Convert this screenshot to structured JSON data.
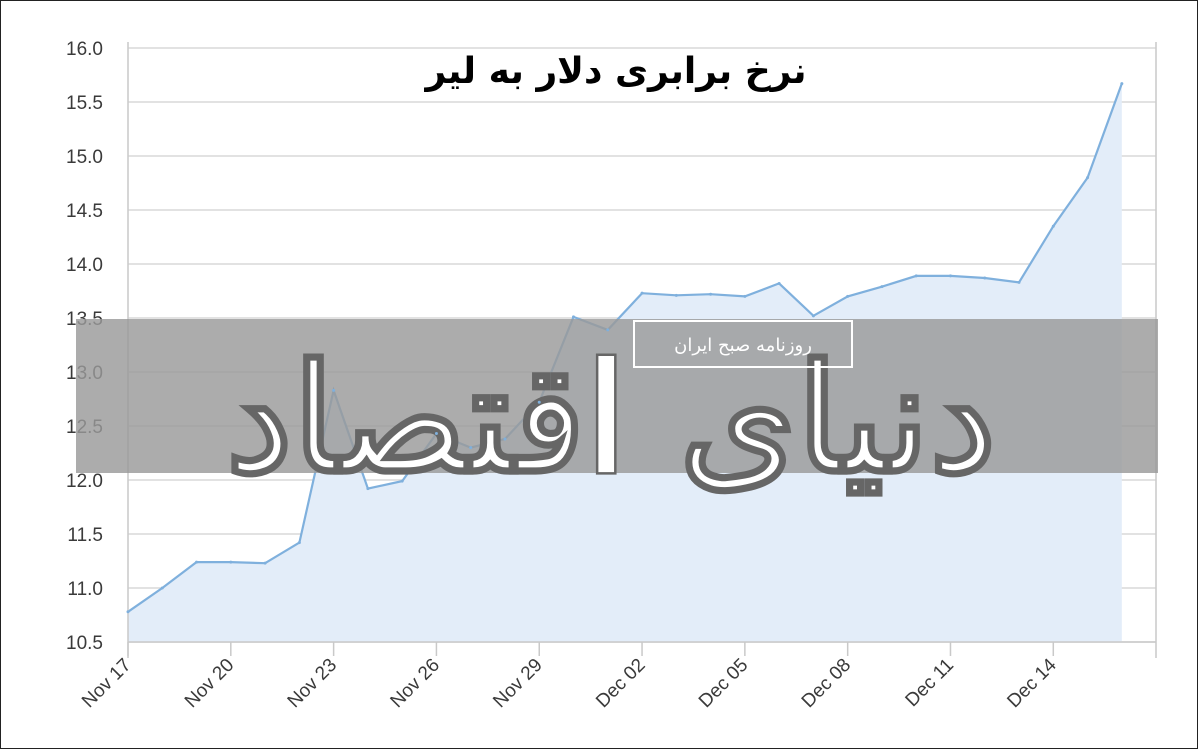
{
  "chart_data": {
    "type": "area",
    "title": "نرخ برابری دلار به لیر",
    "xlabel": "",
    "ylabel": "",
    "x_tick_labels": [
      "Nov 17",
      "Nov 20",
      "Nov 23",
      "Nov 26",
      "Nov 29",
      "Dec 02",
      "Dec 05",
      "Dec 08",
      "Dec 11",
      "Dec 14"
    ],
    "y_tick_labels": [
      "10.5",
      "11.0",
      "11.5",
      "12.0",
      "12.5",
      "13.0",
      "13.5",
      "14.0",
      "14.5",
      "15.0",
      "15.5",
      "16.0"
    ],
    "ylim": [
      10.5,
      16.0
    ],
    "grid": true,
    "legend": "none",
    "series": [
      {
        "x": [
          "Nov 17",
          "Nov 18",
          "Nov 19",
          "Nov 20",
          "Nov 21",
          "Nov 22",
          "Nov 23",
          "Nov 24",
          "Nov 25",
          "Nov 26",
          "Nov 27",
          "Nov 28",
          "Nov 29",
          "Nov 30",
          "Dec 01",
          "Dec 02",
          "Dec 03",
          "Dec 04",
          "Dec 05",
          "Dec 06",
          "Dec 07",
          "Dec 08",
          "Dec 09",
          "Dec 10",
          "Dec 11",
          "Dec 12",
          "Dec 13",
          "Dec 14",
          "Dec 15",
          "Dec 16"
        ],
        "values": [
          10.78,
          11.0,
          11.24,
          11.24,
          11.23,
          11.42,
          12.83,
          11.92,
          11.99,
          12.43,
          12.3,
          12.38,
          12.72,
          13.51,
          13.39,
          13.73,
          13.71,
          13.72,
          13.7,
          13.82,
          13.52,
          13.7,
          13.79,
          13.89,
          13.89,
          13.87,
          13.83,
          14.35,
          14.8,
          15.67
        ]
      }
    ],
    "line_color": "#7fb0dd",
    "area_color": "#e3edf9",
    "grid_color": "#d9d9d9"
  },
  "watermark": {
    "text": "دنیای اقتصاد",
    "subtext": "روزنامه صبح ایران",
    "band_color": "#9a9a9a"
  }
}
